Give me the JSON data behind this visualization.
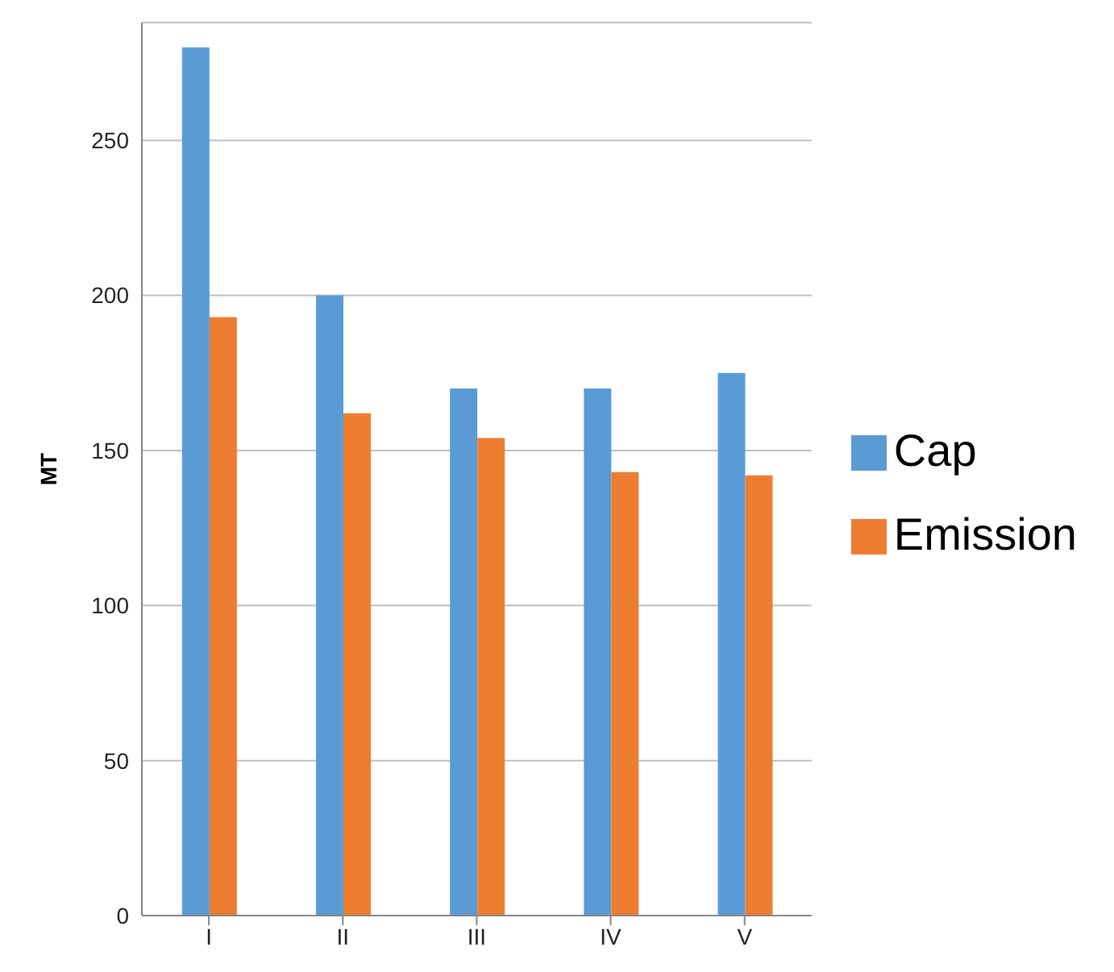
{
  "chart_data": {
    "type": "bar",
    "ylabel": "MT",
    "categories": [
      "I",
      "II",
      "III",
      "IV",
      "V"
    ],
    "series": [
      {
        "name": "Cap",
        "color": "#5b9bd5",
        "values": [
          280,
          200,
          170,
          170,
          175
        ]
      },
      {
        "name": "Emission",
        "color": "#ed7d31",
        "values": [
          193,
          162,
          154,
          143,
          142
        ]
      }
    ],
    "ylim": [
      0,
      288
    ],
    "yticks": [
      0,
      50,
      100,
      150,
      200,
      250
    ],
    "grid": "y",
    "legend": "right"
  }
}
